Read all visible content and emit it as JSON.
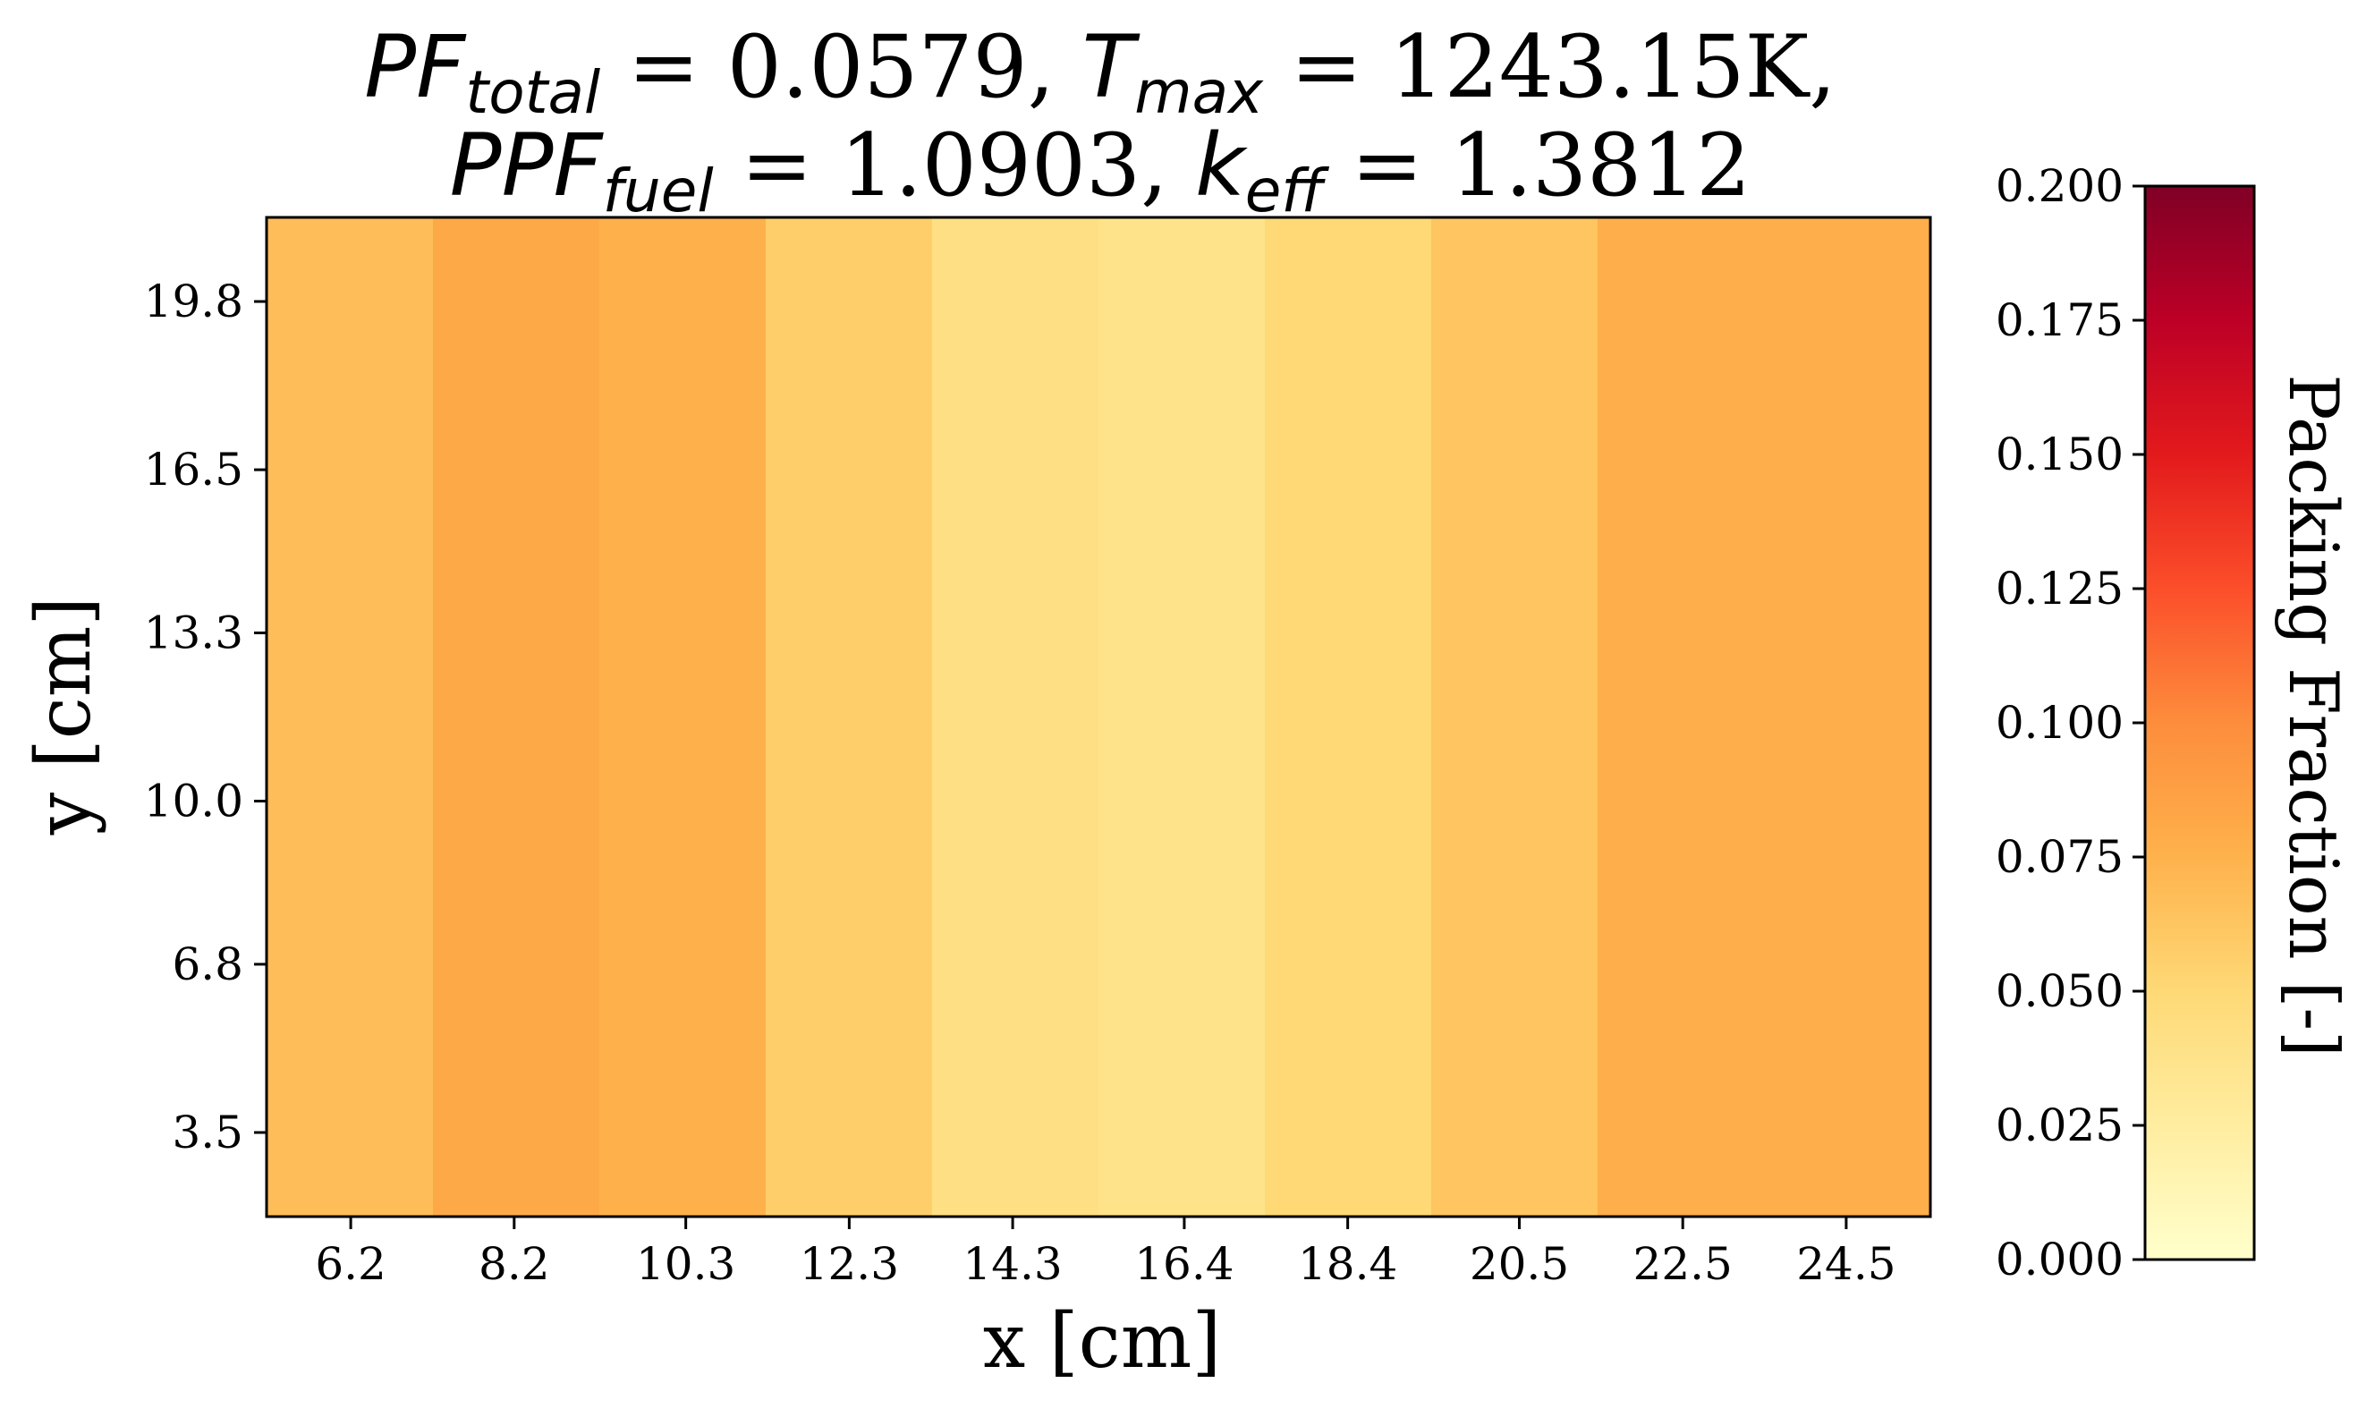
{
  "chart_data": {
    "type": "heatmap",
    "title": {
      "line1": [
        {
          "text": "PF",
          "italic": true
        },
        {
          "text": "total",
          "italic": true,
          "sub": true
        },
        {
          "text": " = 0.0579, ",
          "italic": false
        },
        {
          "text": "T",
          "italic": true
        },
        {
          "text": "max",
          "italic": true,
          "sub": true
        },
        {
          "text": " = 1243.15K,",
          "italic": false
        }
      ],
      "line2": [
        {
          "text": "PPF",
          "italic": true
        },
        {
          "text": "fuel",
          "italic": true,
          "sub": true
        },
        {
          "text": " = 1.0903, ",
          "italic": false
        },
        {
          "text": "k",
          "italic": true
        },
        {
          "text": "eff",
          "italic": true,
          "sub": true
        },
        {
          "text": " = 1.3812",
          "italic": false
        }
      ]
    },
    "xlabel": "x [cm]",
    "ylabel": "y [cm]",
    "xlim": [
      5.17,
      25.53
    ],
    "ylim": [
      1.85,
      21.45
    ],
    "x_ticks": [
      6.2,
      8.2,
      10.3,
      12.3,
      14.3,
      16.4,
      18.4,
      20.5,
      22.5,
      24.5
    ],
    "x_tick_labels": [
      "6.2",
      "8.2",
      "10.3",
      "12.3",
      "14.3",
      "16.4",
      "18.4",
      "20.5",
      "22.5",
      "24.5"
    ],
    "y_ticks": [
      3.5,
      6.8,
      10.0,
      13.3,
      16.5,
      19.8
    ],
    "y_tick_labels": [
      "3.5",
      "6.8",
      "10.0",
      "13.3",
      "16.5",
      "19.8"
    ],
    "column_centers": [
      6.2,
      8.2,
      10.3,
      12.3,
      14.3,
      16.4,
      18.4,
      20.5,
      22.5,
      24.5
    ],
    "column_values": [
      0.068,
      0.081,
      0.076,
      0.057,
      0.042,
      0.038,
      0.05,
      0.063,
      0.078,
      0.078
    ],
    "colorbar": {
      "label": "Packing Fraction [-]",
      "vmin": 0.0,
      "vmax": 0.2,
      "colormap": "YlOrRd",
      "ticks": [
        0.0,
        0.025,
        0.05,
        0.075,
        0.1,
        0.125,
        0.15,
        0.175,
        0.2
      ],
      "tick_labels": [
        "0.000",
        "0.025",
        "0.050",
        "0.075",
        "0.100",
        "0.125",
        "0.150",
        "0.175",
        "0.200"
      ]
    }
  }
}
